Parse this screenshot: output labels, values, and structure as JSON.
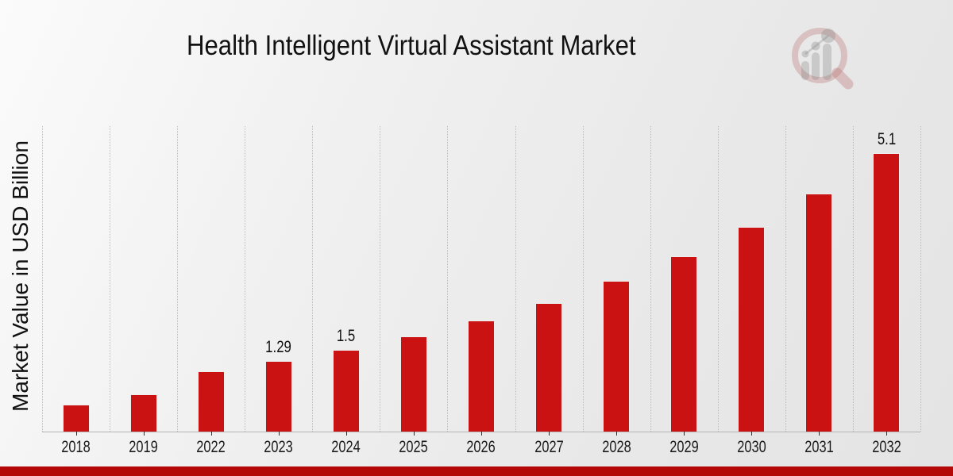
{
  "title": "Health Intelligent Virtual Assistant Market",
  "y_axis_label": "Market Value in USD Billion",
  "colors": {
    "bar": "#cb1212",
    "bar_edge": "#efecec",
    "bottom_strip": "#b40707",
    "gridline": "#bdbdbd",
    "axis_line": "#b4b4b4",
    "text": "#1a1a1a",
    "background_light": "#fbfbfb",
    "background_dark": "#e4e4e4"
  },
  "watermark": "market-research-magnifier-logo",
  "chart_data": {
    "type": "bar",
    "title": "Health Intelligent Virtual Assistant Market",
    "xlabel": "",
    "ylabel": "Market Value in USD Billion",
    "categories": [
      "2018",
      "2019",
      "2022",
      "2023",
      "2024",
      "2025",
      "2026",
      "2027",
      "2028",
      "2029",
      "2030",
      "2031",
      "2032"
    ],
    "values": [
      0.5,
      0.68,
      1.1,
      1.29,
      1.5,
      1.74,
      2.04,
      2.36,
      2.77,
      3.21,
      3.76,
      4.37,
      5.1
    ],
    "bar_labels": [
      "",
      "",
      "",
      "1.29",
      "1.5",
      "",
      "",
      "",
      "",
      "",
      "",
      "",
      "5.1"
    ],
    "unit": "USD Billion",
    "ylim": [
      0,
      5.6
    ],
    "grid": "vertical-dotted",
    "legend": "none",
    "bar_color": "#cb1212"
  }
}
